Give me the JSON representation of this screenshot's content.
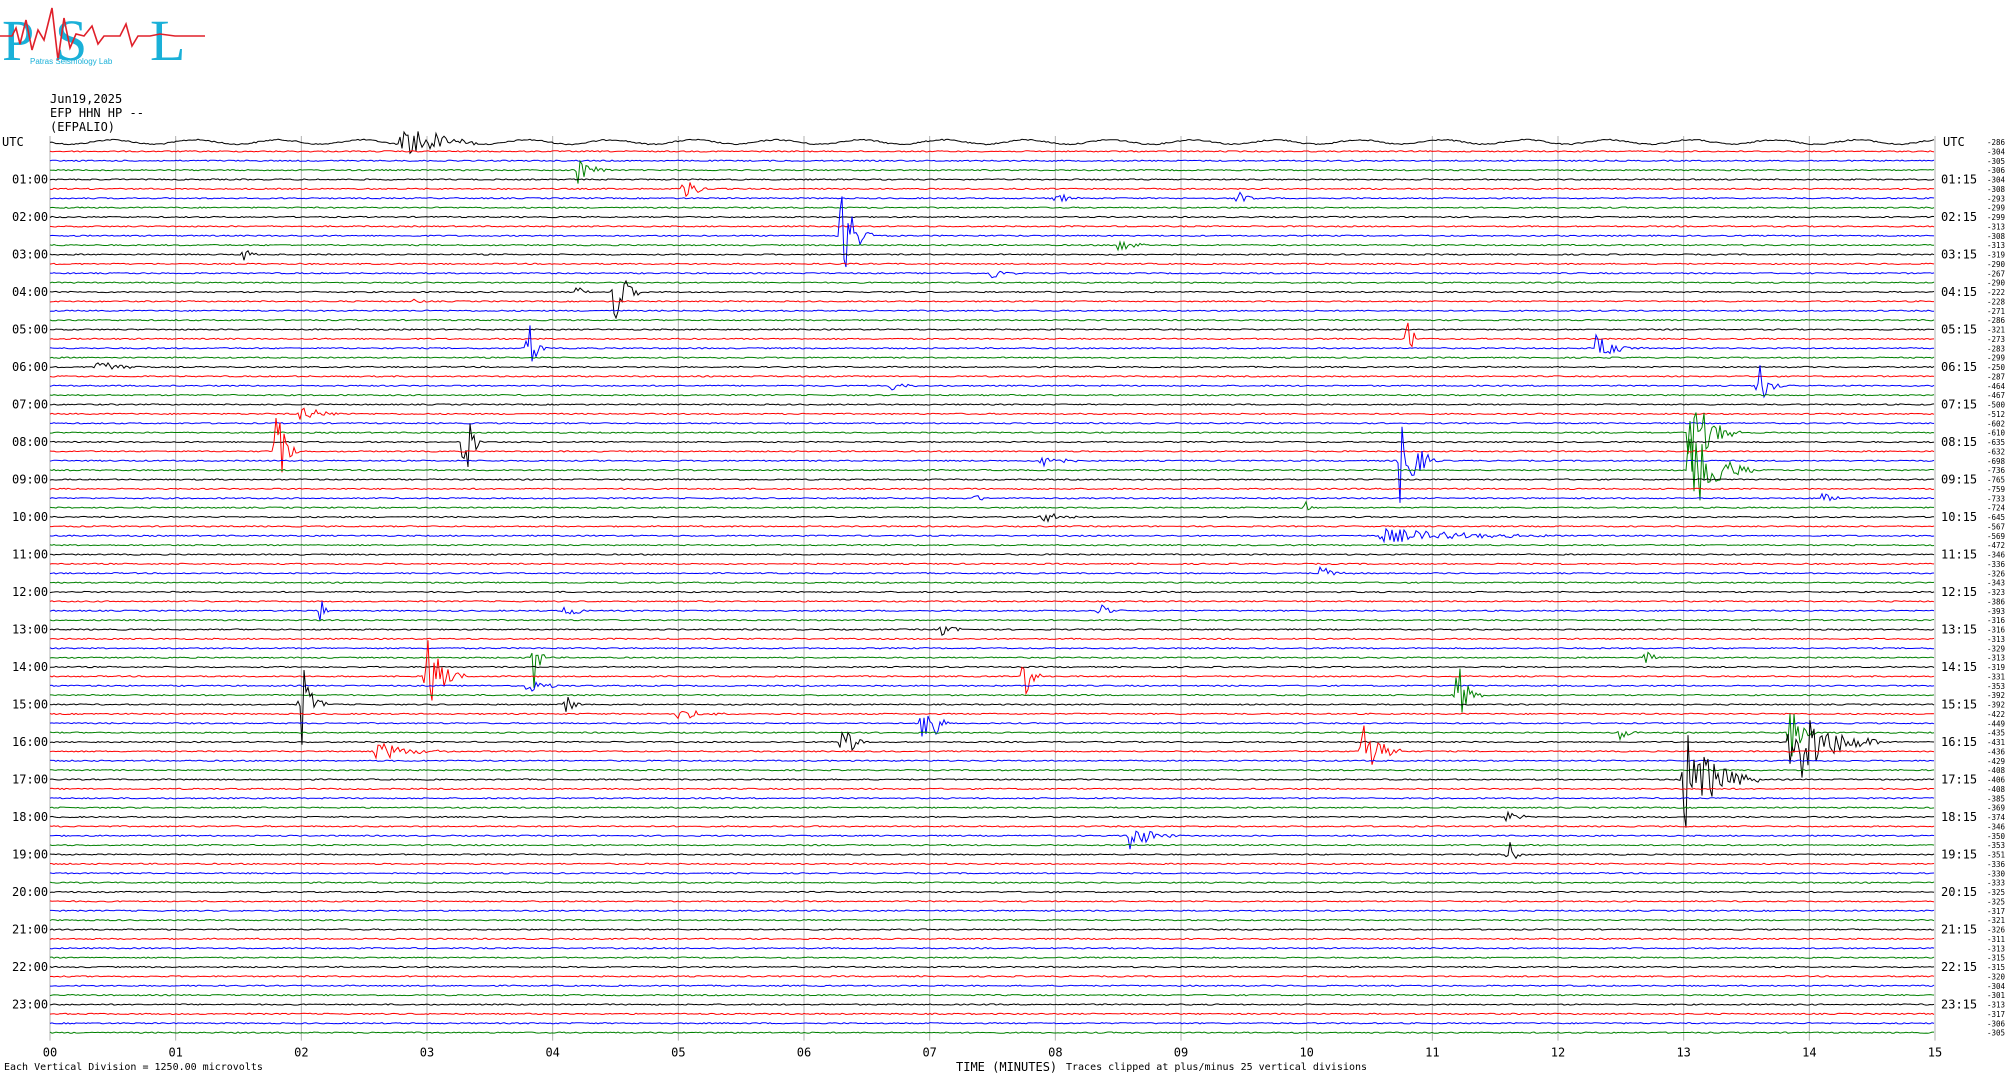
{
  "header": {
    "date": "Jun19,2025",
    "channel": "EFP HHN HP --",
    "station": "(EFPALIO)"
  },
  "logo": {
    "letters": [
      "P",
      "S",
      "L"
    ],
    "tagline": "Patras Seismology Lab",
    "colors": {
      "letters": "#1ab0d8",
      "trace": "#e0202a"
    }
  },
  "colors": {
    "traces": [
      "#000000",
      "#ff0000",
      "#0000ff",
      "#008000"
    ],
    "grid": "#b0b0b0"
  },
  "footer": {
    "scale_note": "Each Vertical Division = 1250.00 microvolts",
    "axis_title": "TIME (MINUTES)",
    "clip_note": "Traces clipped at plus/minus 25 vertical divisions"
  },
  "chart_data": {
    "type": "line",
    "title": "",
    "xlabel": "TIME (MINUTES)",
    "xlim": [
      0,
      15
    ],
    "x_ticks": [
      "00",
      "01",
      "02",
      "03",
      "04",
      "05",
      "06",
      "07",
      "08",
      "09",
      "10",
      "11",
      "12",
      "13",
      "14",
      "15"
    ],
    "row_minutes": 15,
    "row_count": 96,
    "left_axis_label": "UTC",
    "right_axis_label": "UTC",
    "left_labels": [
      "01:00",
      "02:00",
      "03:00",
      "04:00",
      "05:00",
      "06:00",
      "07:00",
      "08:00",
      "09:00",
      "10:00",
      "11:00",
      "12:00",
      "13:00",
      "14:00",
      "15:00",
      "16:00",
      "17:00",
      "18:00",
      "19:00",
      "20:00",
      "21:00",
      "22:00",
      "23:00"
    ],
    "right_labels": [
      "01:15",
      "02:15",
      "03:15",
      "04:15",
      "05:15",
      "06:15",
      "07:15",
      "08:15",
      "09:15",
      "10:15",
      "11:15",
      "12:15",
      "13:15",
      "14:15",
      "15:15",
      "16:15",
      "17:15",
      "18:15",
      "19:15",
      "20:15",
      "21:15",
      "22:15",
      "23:15"
    ],
    "row_offsets": [
      -286,
      -304,
      -305,
      -306,
      -304,
      -308,
      -293,
      -299,
      -299,
      -313,
      -308,
      -313,
      -319,
      -290,
      -267,
      -290,
      -222,
      -228,
      -271,
      -286,
      -321,
      -273,
      -283,
      -299,
      -250,
      -287,
      -464,
      -467,
      -500,
      -512,
      -602,
      -610,
      -635,
      -632,
      -698,
      -736,
      -765,
      -759,
      -733,
      -724,
      -645,
      -567,
      -569,
      -472,
      -346,
      -336,
      -326,
      -343,
      -323,
      -386,
      -393,
      -316,
      -316,
      -313,
      -329,
      -313,
      -319,
      -331,
      -353,
      -392,
      -392,
      -422,
      -449,
      -435,
      -431,
      -436,
      -429,
      -408,
      -406,
      -408,
      -385,
      -369,
      -374,
      -346,
      -350,
      -353,
      -351,
      -336,
      -330,
      -333,
      -325,
      -325,
      -317,
      -321,
      -326,
      -311,
      -313,
      -315,
      -315,
      -320,
      -304,
      -301,
      -313,
      -317,
      -306,
      -305
    ],
    "events": [
      {
        "row": 0,
        "minute": 2.8,
        "amplitude": 3.0,
        "duration_min": 0.6
      },
      {
        "row": 3,
        "minute": 4.2,
        "amplitude": 1.5,
        "duration_min": 0.3
      },
      {
        "row": 5,
        "minute": 5.05,
        "amplitude": 2.5,
        "duration_min": 0.2
      },
      {
        "row": 6,
        "minute": 8.0,
        "amplitude": 1.0,
        "duration_min": 0.2
      },
      {
        "row": 6,
        "minute": 9.45,
        "amplitude": 1.0,
        "duration_min": 0.2
      },
      {
        "row": 10,
        "minute": 6.3,
        "amplitude": 6.0,
        "duration_min": 0.25
      },
      {
        "row": 11,
        "minute": 8.5,
        "amplitude": 0.8,
        "duration_min": 0.4
      },
      {
        "row": 12,
        "minute": 1.55,
        "amplitude": 1.0,
        "duration_min": 0.1
      },
      {
        "row": 14,
        "minute": 7.5,
        "amplitude": 0.8,
        "duration_min": 0.2
      },
      {
        "row": 16,
        "minute": 4.5,
        "amplitude": 4.5,
        "duration_min": 0.2
      },
      {
        "row": 16,
        "minute": 4.2,
        "amplitude": 0.8,
        "duration_min": 0.1
      },
      {
        "row": 17,
        "minute": 2.9,
        "amplitude": 0.8,
        "duration_min": 0.1
      },
      {
        "row": 21,
        "minute": 10.8,
        "amplitude": 3.5,
        "duration_min": 0.1
      },
      {
        "row": 22,
        "minute": 3.8,
        "amplitude": 4.0,
        "duration_min": 0.15
      },
      {
        "row": 22,
        "minute": 12.3,
        "amplitude": 1.5,
        "duration_min": 0.4
      },
      {
        "row": 24,
        "minute": 0.35,
        "amplitude": 1.2,
        "duration_min": 0.4
      },
      {
        "row": 26,
        "minute": 6.7,
        "amplitude": 0.8,
        "duration_min": 0.2
      },
      {
        "row": 26,
        "minute": 13.6,
        "amplitude": 3.0,
        "duration_min": 0.2
      },
      {
        "row": 29,
        "minute": 2.0,
        "amplitude": 1.0,
        "duration_min": 0.4
      },
      {
        "row": 31,
        "minute": 13.05,
        "amplitude": 5.0,
        "duration_min": 0.4
      },
      {
        "row": 32,
        "minute": 3.3,
        "amplitude": 6.0,
        "duration_min": 0.15
      },
      {
        "row": 33,
        "minute": 1.8,
        "amplitude": 5.0,
        "duration_min": 0.2
      },
      {
        "row": 34,
        "minute": 10.75,
        "amplitude": 6.0,
        "duration_min": 0.3
      },
      {
        "row": 34,
        "minute": 7.9,
        "amplitude": 1.2,
        "duration_min": 0.3
      },
      {
        "row": 35,
        "minute": 13.05,
        "amplitude": 6.0,
        "duration_min": 0.5
      },
      {
        "row": 38,
        "minute": 7.35,
        "amplitude": 1.0,
        "duration_min": 0.1
      },
      {
        "row": 38,
        "minute": 14.1,
        "amplitude": 0.8,
        "duration_min": 0.2
      },
      {
        "row": 39,
        "minute": 10.0,
        "amplitude": 0.8,
        "duration_min": 0.1
      },
      {
        "row": 40,
        "minute": 7.9,
        "amplitude": 0.8,
        "duration_min": 0.3
      },
      {
        "row": 42,
        "minute": 10.6,
        "amplitude": 0.8,
        "duration_min": 1.8
      },
      {
        "row": 46,
        "minute": 10.1,
        "amplitude": 0.8,
        "duration_min": 0.3
      },
      {
        "row": 50,
        "minute": 2.15,
        "amplitude": 1.5,
        "duration_min": 0.1
      },
      {
        "row": 50,
        "minute": 4.1,
        "amplitude": 0.8,
        "duration_min": 0.3
      },
      {
        "row": 50,
        "minute": 8.35,
        "amplitude": 1.0,
        "duration_min": 0.2
      },
      {
        "row": 52,
        "minute": 7.1,
        "amplitude": 1.0,
        "duration_min": 0.2
      },
      {
        "row": 55,
        "minute": 3.85,
        "amplitude": 4.0,
        "duration_min": 0.1
      },
      {
        "row": 55,
        "minute": 12.7,
        "amplitude": 0.8,
        "duration_min": 0.2
      },
      {
        "row": 57,
        "minute": 3.0,
        "amplitude": 5.0,
        "duration_min": 0.3
      },
      {
        "row": 57,
        "minute": 7.75,
        "amplitude": 3.0,
        "duration_min": 0.15
      },
      {
        "row": 58,
        "minute": 3.8,
        "amplitude": 1.0,
        "duration_min": 0.3
      },
      {
        "row": 59,
        "minute": 11.2,
        "amplitude": 4.0,
        "duration_min": 0.2
      },
      {
        "row": 60,
        "minute": 2.0,
        "amplitude": 5.0,
        "duration_min": 0.2
      },
      {
        "row": 60,
        "minute": 4.1,
        "amplitude": 1.5,
        "duration_min": 0.15
      },
      {
        "row": 61,
        "minute": 5.0,
        "amplitude": 0.8,
        "duration_min": 0.4
      },
      {
        "row": 62,
        "minute": 6.95,
        "amplitude": 5.0,
        "duration_min": 0.2
      },
      {
        "row": 63,
        "minute": 12.5,
        "amplitude": 1.2,
        "duration_min": 0.15
      },
      {
        "row": 63,
        "minute": 13.85,
        "amplitude": 3.5,
        "duration_min": 0.2
      },
      {
        "row": 64,
        "minute": 6.3,
        "amplitude": 3.0,
        "duration_min": 0.2
      },
      {
        "row": 64,
        "minute": 13.85,
        "amplitude": 6.0,
        "duration_min": 0.7
      },
      {
        "row": 65,
        "minute": 2.6,
        "amplitude": 1.2,
        "duration_min": 0.6
      },
      {
        "row": 65,
        "minute": 10.45,
        "amplitude": 5.0,
        "duration_min": 0.3
      },
      {
        "row": 68,
        "minute": 13.0,
        "amplitude": 6.0,
        "duration_min": 0.6
      },
      {
        "row": 72,
        "minute": 11.6,
        "amplitude": 1.0,
        "duration_min": 0.2
      },
      {
        "row": 74,
        "minute": 8.6,
        "amplitude": 1.8,
        "duration_min": 0.4
      },
      {
        "row": 76,
        "minute": 11.6,
        "amplitude": 2.0,
        "duration_min": 0.15
      }
    ]
  }
}
